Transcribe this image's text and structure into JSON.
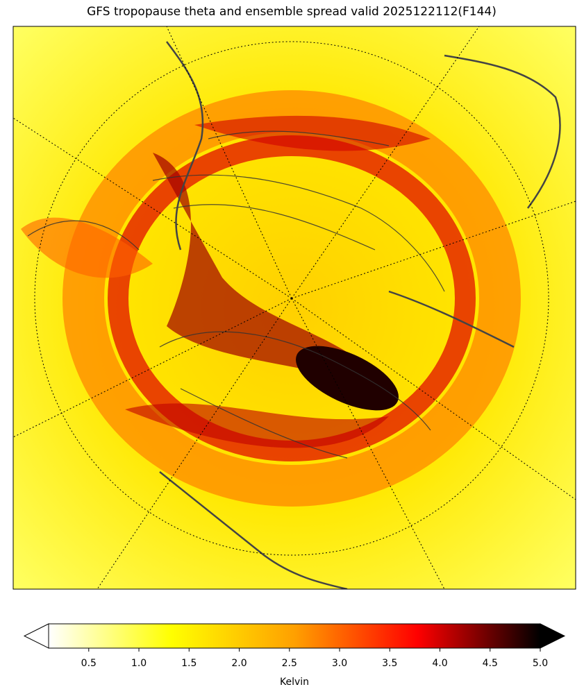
{
  "map": {
    "title": "GFS tropopause theta and ensemble spread valid 2025122112(F144)",
    "colorbar": {
      "label": "Kelvin",
      "lim": [
        0.1,
        5.0
      ],
      "ticks": [
        0.5,
        {
          "value": 1,
          "label": "1.0"
        },
        1.5,
        {
          "value": 2,
          "label": "2.0"
        },
        2.5,
        {
          "value": 3,
          "label": "3.0"
        },
        3.5,
        {
          "value": 4,
          "label": "4.0"
        },
        4.5,
        {
          "value": 5,
          "label": "5.0"
        }
      ],
      "colors": [
        "#ffffff",
        "#ffff00",
        "#ffa000",
        "#ff0000",
        "#000000"
      ],
      "extend": "both"
    }
  }
}
